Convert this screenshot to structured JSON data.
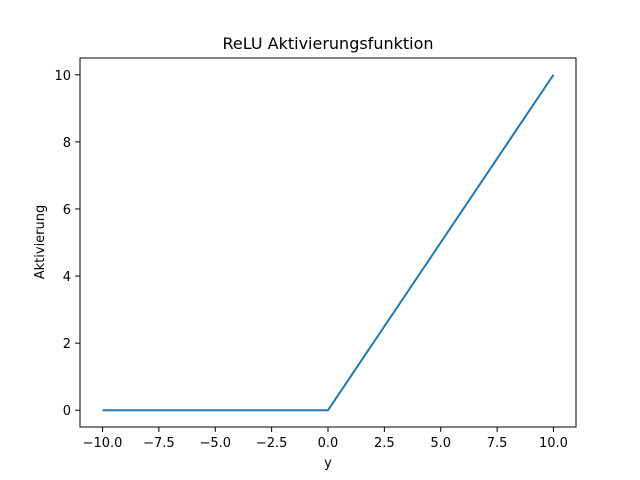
{
  "chart_data": {
    "type": "line",
    "title": "ReLU Aktivierungsfunktion",
    "xlabel": "y",
    "ylabel": "Aktivierung",
    "xlim": [
      -11,
      11
    ],
    "ylim": [
      -0.5,
      10.5
    ],
    "xticks": [
      -10.0,
      -7.5,
      -5.0,
      -2.5,
      0.0,
      2.5,
      5.0,
      7.5,
      10.0
    ],
    "xtick_labels": [
      "−10.0",
      "−7.5",
      "−5.0",
      "−2.5",
      "0.0",
      "2.5",
      "5.0",
      "7.5",
      "10.0"
    ],
    "yticks": [
      0,
      2,
      4,
      6,
      8,
      10
    ],
    "ytick_labels": [
      "0",
      "2",
      "4",
      "6",
      "8",
      "10"
    ],
    "grid": false,
    "series": [
      {
        "color": "#1f77b4",
        "x": [
          -10,
          0,
          10
        ],
        "y": [
          0,
          0,
          10
        ]
      }
    ]
  }
}
